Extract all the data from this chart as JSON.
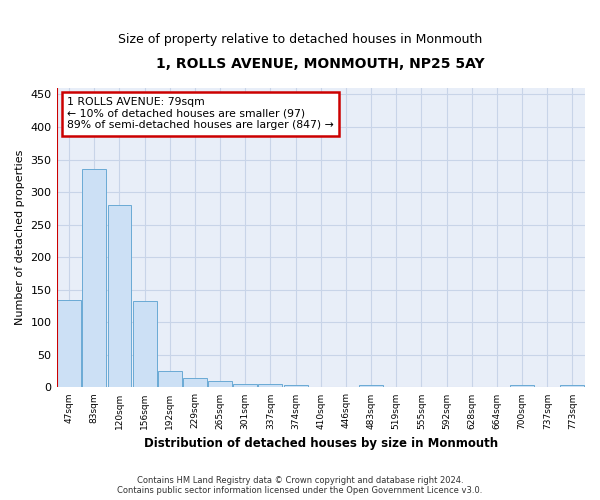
{
  "title": "1, ROLLS AVENUE, MONMOUTH, NP25 5AY",
  "subtitle": "Size of property relative to detached houses in Monmouth",
  "xlabel": "Distribution of detached houses by size in Monmouth",
  "ylabel": "Number of detached properties",
  "footer_line1": "Contains HM Land Registry data © Crown copyright and database right 2024.",
  "footer_line2": "Contains public sector information licensed under the Open Government Licence v3.0.",
  "bar_labels": [
    "47sqm",
    "83sqm",
    "120sqm",
    "156sqm",
    "192sqm",
    "229sqm",
    "265sqm",
    "301sqm",
    "337sqm",
    "374sqm",
    "410sqm",
    "446sqm",
    "483sqm",
    "519sqm",
    "555sqm",
    "592sqm",
    "628sqm",
    "664sqm",
    "700sqm",
    "737sqm",
    "773sqm"
  ],
  "bar_values": [
    135,
    335,
    280,
    133,
    25,
    15,
    10,
    6,
    5,
    4,
    0,
    0,
    4,
    0,
    0,
    0,
    0,
    0,
    4,
    0,
    4
  ],
  "bar_color": "#cce0f5",
  "bar_edge_color": "#6aaad4",
  "grid_color": "#c8d4e8",
  "background_color": "#e8eef8",
  "property_line_color": "#cc0000",
  "annotation_line1": "1 ROLLS AVENUE: 79sqm",
  "annotation_line2": "← 10% of detached houses are smaller (97)",
  "annotation_line3": "89% of semi-detached houses are larger (847) →",
  "annotation_box_color": "#ffffff",
  "annotation_box_edge_color": "#cc0000",
  "ylim": [
    0,
    460
  ],
  "yticks": [
    0,
    50,
    100,
    150,
    200,
    250,
    300,
    350,
    400,
    450
  ],
  "title_fontsize": 10,
  "subtitle_fontsize": 9
}
